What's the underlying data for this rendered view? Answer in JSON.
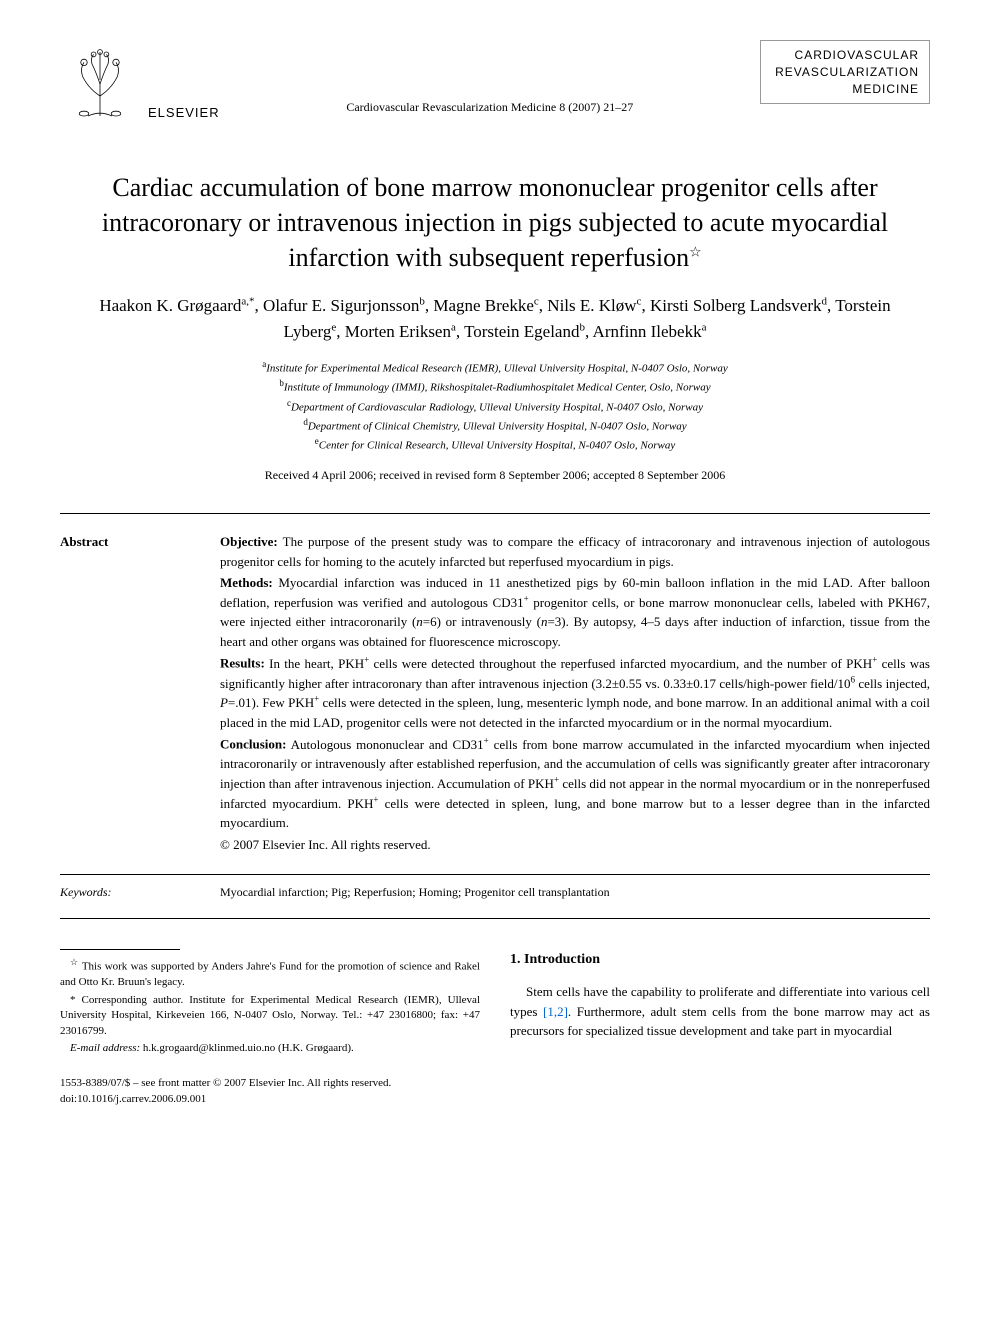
{
  "publisher": {
    "name": "ELSEVIER",
    "tree_stroke": "#000000"
  },
  "journal_ref": "Cardiovascular Revascularization Medicine 8 (2007) 21–27",
  "journal_badge": {
    "line1": "CARDIOVASCULAR",
    "line2": "REVASCULARIZATION",
    "line3": "MEDICINE"
  },
  "title": "Cardiac accumulation of bone marrow mononuclear progenitor cells after intracoronary or intravenous injection in pigs subjected to acute myocardial infarction with subsequent reperfusion",
  "title_note_marker": "☆",
  "authors_html": "Haakon K. Grøgaard<sup>a,*</sup>, Olafur E. Sigurjonsson<sup>b</sup>, Magne Brekke<sup>c</sup>, Nils E. Kløw<sup>c</sup>, Kirsti Solberg Landsverk<sup>d</sup>, Torstein Lyberg<sup>e</sup>, Morten Eriksen<sup>a</sup>, Torstein Egeland<sup>b</sup>, Arnfinn Ilebekk<sup>a</sup>",
  "affiliations": [
    {
      "key": "a",
      "text": "Institute for Experimental Medical Research (IEMR), Ulleval University Hospital, N-0407 Oslo, Norway"
    },
    {
      "key": "b",
      "text": "Institute of Immunology (IMMI), Rikshospitalet-Radiumhospitalet Medical Center, Oslo, Norway"
    },
    {
      "key": "c",
      "text": "Department of Cardiovascular Radiology, Ulleval University Hospital, N-0407 Oslo, Norway"
    },
    {
      "key": "d",
      "text": "Department of Clinical Chemistry, Ulleval University Hospital, N-0407 Oslo, Norway"
    },
    {
      "key": "e",
      "text": "Center for Clinical Research, Ulleval University Hospital, N-0407 Oslo, Norway"
    }
  ],
  "dates": "Received 4 April 2006; received in revised form 8 September 2006; accepted 8 September 2006",
  "abstract": {
    "label": "Abstract",
    "objective_label": "Objective:",
    "objective": " The purpose of the present study was to compare the efficacy of intracoronary and intravenous injection of autologous progenitor cells for homing to the acutely infarcted but reperfused myocardium in pigs.",
    "methods_label": "Methods:",
    "methods": " Myocardial infarction was induced in 11 anesthetized pigs by 60-min balloon inflation in the mid LAD. After balloon deflation, reperfusion was verified and autologous CD31<sup>+</sup> progenitor cells, or bone marrow mononuclear cells, labeled with PKH67, were injected either intracoronarily (<i>n</i>=6) or intravenously (<i>n</i>=3). By autopsy, 4–5 days after induction of infarction, tissue from the heart and other organs was obtained for fluorescence microscopy.",
    "results_label": "Results:",
    "results": " In the heart, PKH<sup>+</sup> cells were detected throughout the reperfused infarcted myocardium, and the number of PKH<sup>+</sup> cells was significantly higher after intracoronary than after intravenous injection (3.2±0.55 vs. 0.33±0.17 cells/high-power field/10<sup>6</sup> cells injected, <i>P</i>=.01). Few PKH<sup>+</sup> cells were detected in the spleen, lung, mesenteric lymph node, and bone marrow. In an additional animal with a coil placed in the mid LAD, progenitor cells were not detected in the infarcted myocardium or in the normal myocardium.",
    "conclusion_label": "Conclusion:",
    "conclusion": " Autologous mononuclear and CD31<sup>+</sup> cells from bone marrow accumulated in the infarcted myocardium when injected intracoronarily or intravenously after established reperfusion, and the accumulation of cells was significantly greater after intracoronary injection than after intravenous injection. Accumulation of PKH<sup>+</sup> cells did not appear in the normal myocardium or in the nonreperfused infarcted myocardium. PKH<sup>+</sup> cells were detected in spleen, lung, and bone marrow but to a lesser degree than in the infarcted myocardium.",
    "copyright": "© 2007 Elsevier Inc. All rights reserved."
  },
  "keywords": {
    "label": "Keywords:",
    "text": "Myocardial infarction; Pig; Reperfusion; Homing; Progenitor cell transplantation"
  },
  "footnotes": {
    "funding_marker": "☆",
    "funding": " This work was supported by Anders Jahre's Fund for the promotion of science and Rakel and Otto Kr. Bruun's legacy.",
    "corr_marker": "*",
    "corr": " Corresponding author. Institute for Experimental Medical Research (IEMR), Ulleval University Hospital, Kirkeveien 166, N-0407 Oslo, Norway. Tel.: +47 23016800; fax: +47 23016799.",
    "email_label": "E-mail address:",
    "email": " h.k.grogaard@klinmed.uio.no (H.K. Grøgaard)."
  },
  "intro": {
    "heading": "1. Introduction",
    "para1_part1": "Stem cells have the capability to proliferate and differentiate into various cell types ",
    "cite1": "[1,2]",
    "para1_part2": ". Furthermore, adult stem cells from the bone marrow may act as precursors for specialized tissue development and take part in myocardial"
  },
  "bottom": {
    "issn": "1553-8389/07/$ – see front matter © 2007 Elsevier Inc. All rights reserved.",
    "doi": "doi:10.1016/j.carrev.2006.09.001"
  },
  "colors": {
    "text": "#000000",
    "link": "#0066cc",
    "background": "#ffffff",
    "rule": "#000000"
  },
  "typography": {
    "title_fontsize": 26,
    "authors_fontsize": 17,
    "body_fontsize": 13,
    "affil_fontsize": 11,
    "footnote_fontsize": 11
  }
}
